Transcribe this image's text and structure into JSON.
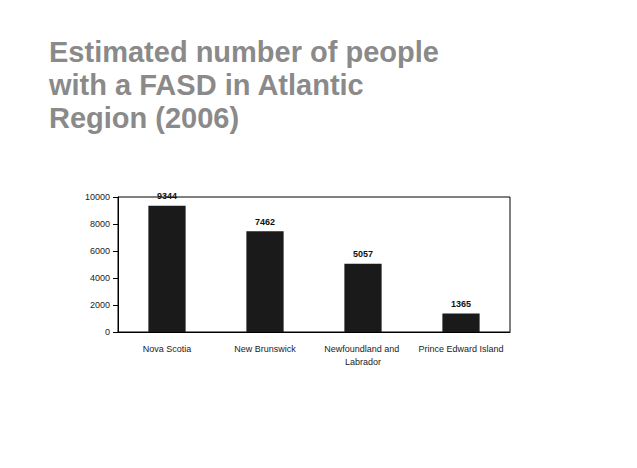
{
  "chart_data": {
    "type": "bar",
    "title": "Estimated number of people with a FASD in Atlantic Region (2006)",
    "categories": [
      "Nova Scotia",
      "New Brunswick",
      "Newfoundland and Labrador",
      "Prince Edward Island"
    ],
    "values": [
      9344,
      7462,
      5057,
      1365
    ],
    "color": "#1a1a1a",
    "ylim": [
      0,
      10000
    ],
    "yticks": [
      0,
      2000,
      4000,
      6000,
      8000,
      10000
    ],
    "grid": false,
    "data_labels": true
  }
}
